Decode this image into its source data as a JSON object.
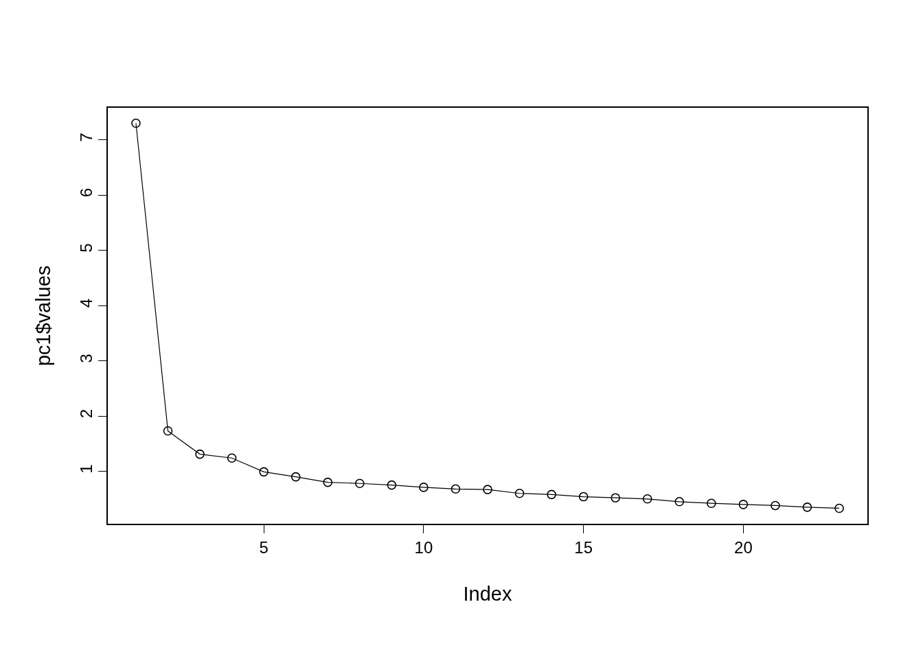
{
  "chart_data": {
    "type": "line",
    "xlabel": "Index",
    "ylabel": "pc1$values",
    "x": [
      1,
      2,
      3,
      4,
      5,
      6,
      7,
      8,
      9,
      10,
      11,
      12,
      13,
      14,
      15,
      16,
      17,
      18,
      19,
      20,
      21,
      22,
      23
    ],
    "values": [
      7.3,
      1.73,
      1.31,
      1.24,
      0.99,
      0.9,
      0.8,
      0.78,
      0.75,
      0.71,
      0.68,
      0.67,
      0.6,
      0.58,
      0.54,
      0.52,
      0.5,
      0.45,
      0.42,
      0.4,
      0.38,
      0.35,
      0.33
    ],
    "color": "#000000",
    "marker": "circle",
    "line_style": "solid",
    "legend": false,
    "xlim": [
      0.12,
      23.88
    ],
    "xticks": [
      5,
      10,
      15,
      20
    ],
    "ylim": [
      0.05,
      7.58
    ],
    "yticks": [
      1,
      2,
      3,
      4,
      5,
      6,
      7
    ]
  }
}
